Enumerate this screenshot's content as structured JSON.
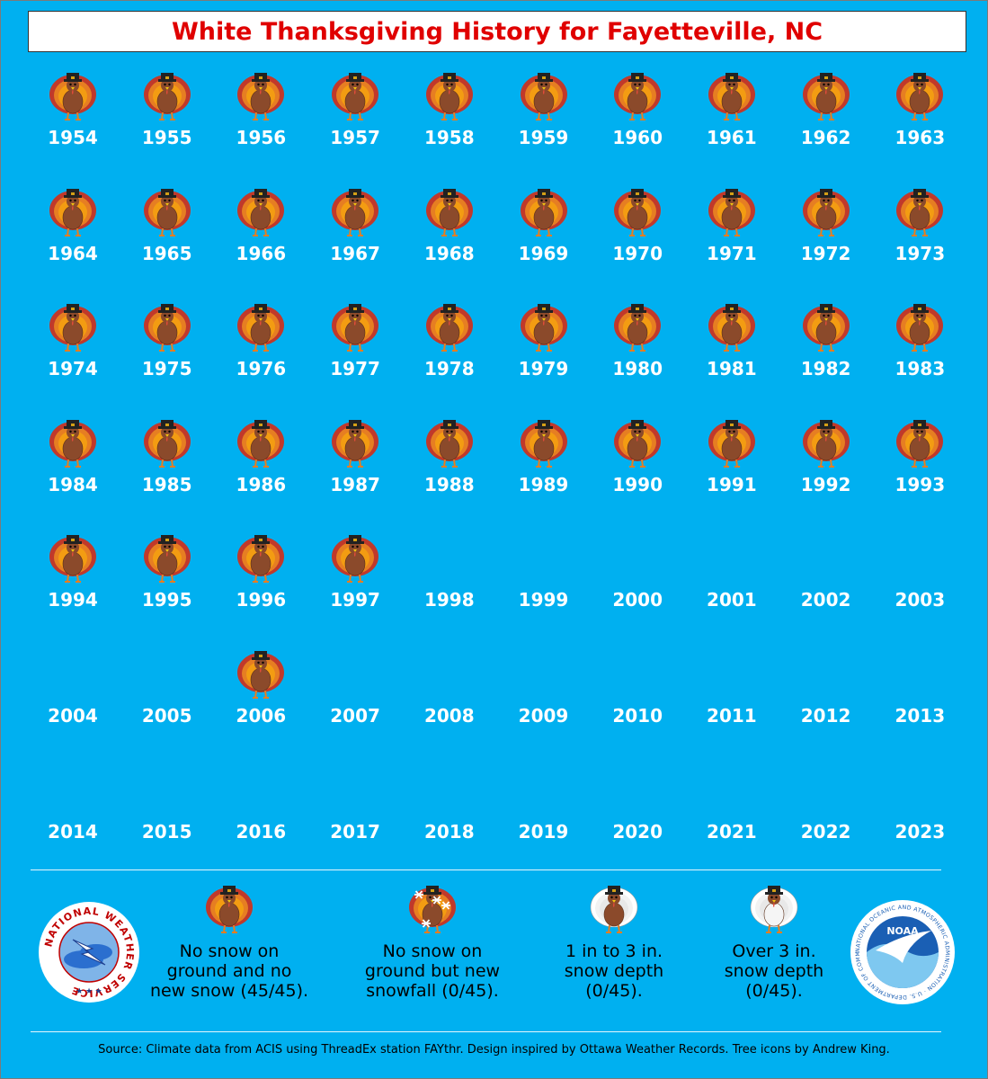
{
  "title": "White Thanksgiving History for Fayetteville, NC",
  "years": [
    {
      "year": "1954",
      "icon": "turkey"
    },
    {
      "year": "1955",
      "icon": "turkey"
    },
    {
      "year": "1956",
      "icon": "turkey"
    },
    {
      "year": "1957",
      "icon": "turkey"
    },
    {
      "year": "1958",
      "icon": "turkey"
    },
    {
      "year": "1959",
      "icon": "turkey"
    },
    {
      "year": "1960",
      "icon": "turkey"
    },
    {
      "year": "1961",
      "icon": "turkey"
    },
    {
      "year": "1962",
      "icon": "turkey"
    },
    {
      "year": "1963",
      "icon": "turkey"
    },
    {
      "year": "1964",
      "icon": "turkey"
    },
    {
      "year": "1965",
      "icon": "turkey"
    },
    {
      "year": "1966",
      "icon": "turkey"
    },
    {
      "year": "1967",
      "icon": "turkey"
    },
    {
      "year": "1968",
      "icon": "turkey"
    },
    {
      "year": "1969",
      "icon": "turkey"
    },
    {
      "year": "1970",
      "icon": "turkey"
    },
    {
      "year": "1971",
      "icon": "turkey"
    },
    {
      "year": "1972",
      "icon": "turkey"
    },
    {
      "year": "1973",
      "icon": "turkey"
    },
    {
      "year": "1974",
      "icon": "turkey"
    },
    {
      "year": "1975",
      "icon": "turkey"
    },
    {
      "year": "1976",
      "icon": "turkey"
    },
    {
      "year": "1977",
      "icon": "turkey"
    },
    {
      "year": "1978",
      "icon": "turkey"
    },
    {
      "year": "1979",
      "icon": "turkey"
    },
    {
      "year": "1980",
      "icon": "turkey"
    },
    {
      "year": "1981",
      "icon": "turkey"
    },
    {
      "year": "1982",
      "icon": "turkey"
    },
    {
      "year": "1983",
      "icon": "turkey"
    },
    {
      "year": "1984",
      "icon": "turkey"
    },
    {
      "year": "1985",
      "icon": "turkey"
    },
    {
      "year": "1986",
      "icon": "turkey"
    },
    {
      "year": "1987",
      "icon": "turkey"
    },
    {
      "year": "1988",
      "icon": "turkey"
    },
    {
      "year": "1989",
      "icon": "turkey"
    },
    {
      "year": "1990",
      "icon": "turkey"
    },
    {
      "year": "1991",
      "icon": "turkey"
    },
    {
      "year": "1992",
      "icon": "turkey"
    },
    {
      "year": "1993",
      "icon": "turkey"
    },
    {
      "year": "1994",
      "icon": "turkey"
    },
    {
      "year": "1995",
      "icon": "turkey"
    },
    {
      "year": "1996",
      "icon": "turkey"
    },
    {
      "year": "1997",
      "icon": "turkey"
    },
    {
      "year": "1998",
      "icon": ""
    },
    {
      "year": "1999",
      "icon": ""
    },
    {
      "year": "2000",
      "icon": ""
    },
    {
      "year": "2001",
      "icon": ""
    },
    {
      "year": "2002",
      "icon": ""
    },
    {
      "year": "2003",
      "icon": ""
    },
    {
      "year": "2004",
      "icon": ""
    },
    {
      "year": "2005",
      "icon": ""
    },
    {
      "year": "2006",
      "icon": "turkey"
    },
    {
      "year": "2007",
      "icon": ""
    },
    {
      "year": "2008",
      "icon": ""
    },
    {
      "year": "2009",
      "icon": ""
    },
    {
      "year": "2010",
      "icon": ""
    },
    {
      "year": "2011",
      "icon": ""
    },
    {
      "year": "2012",
      "icon": ""
    },
    {
      "year": "2013",
      "icon": ""
    },
    {
      "year": "2014",
      "icon": ""
    },
    {
      "year": "2015",
      "icon": ""
    },
    {
      "year": "2016",
      "icon": ""
    },
    {
      "year": "2017",
      "icon": ""
    },
    {
      "year": "2018",
      "icon": ""
    },
    {
      "year": "2019",
      "icon": ""
    },
    {
      "year": "2020",
      "icon": ""
    },
    {
      "year": "2021",
      "icon": ""
    },
    {
      "year": "2022",
      "icon": ""
    },
    {
      "year": "2023",
      "icon": ""
    }
  ],
  "legend": [
    {
      "icon": "turkey",
      "lines": [
        "No snow on",
        "ground and no",
        "new snow (45/45)."
      ]
    },
    {
      "icon": "turkey-snowflakes",
      "lines": [
        "No snow on",
        "ground but new",
        "snowfall (0/45)."
      ]
    },
    {
      "icon": "turkey-light-snow",
      "lines": [
        "1 in to 3 in.",
        "snow depth",
        "(0/45)."
      ]
    },
    {
      "icon": "turkey-heavy-snow",
      "lines": [
        "Over 3 in.",
        "snow depth",
        "(0/45)."
      ]
    }
  ],
  "logos": {
    "nws_text": "NATIONAL WEATHER SERVICE",
    "noaa_text": "NOAA",
    "noaa_ring_text": "NATIONAL OCEANIC AND ATMOSPHERIC ADMINISTRATION · U.S. DEPARTMENT OF COMMERCE"
  },
  "source": "Source: Climate data from ACIS using ThreadEx station FAYthr. Design inspired by Ottawa Weather Records. Tree icons by Andrew King.",
  "colors": {
    "background": "#00b0f0",
    "title": "#e00000",
    "year": "#ffffff"
  }
}
